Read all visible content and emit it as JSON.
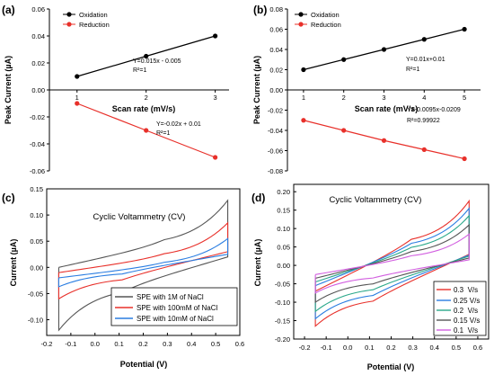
{
  "chart_data": [
    {
      "panel": "(a)",
      "type": "line",
      "xlabel": "Scan rate (mV/s)",
      "ylabel": "Peak Current (µA)",
      "xlim": [
        0.6,
        3.2
      ],
      "ylim": [
        -0.06,
        0.06
      ],
      "xticks": [
        "1",
        "2",
        "3"
      ],
      "yticks": [
        "-0.06",
        "-0.04",
        "-0.02",
        "0.00",
        "0.02",
        "0.04",
        "0.06"
      ],
      "legend": "top-left",
      "series": [
        {
          "name": "Oxidation",
          "color": "#000000",
          "x": [
            1,
            2,
            3
          ],
          "y": [
            0.01,
            0.025,
            0.04
          ]
        },
        {
          "name": "Reduction",
          "color": "#e8302a",
          "x": [
            1,
            2,
            3
          ],
          "y": [
            -0.01,
            -0.03,
            -0.05
          ]
        }
      ],
      "annotations": [
        {
          "eq": "Y=0.015x - 0.005",
          "r2": "R²=1"
        },
        {
          "eq": "Y=-0.02x + 0.01",
          "r2": "R²=1"
        }
      ]
    },
    {
      "panel": "(b)",
      "type": "line",
      "xlabel": "Scan rate (mV/s)",
      "ylabel": "Peak Current (µA)",
      "xlim": [
        0.6,
        5.4
      ],
      "ylim": [
        -0.08,
        0.08
      ],
      "xticks": [
        "1",
        "2",
        "3",
        "4",
        "5"
      ],
      "yticks": [
        "-0.08",
        "-0.06",
        "-0.04",
        "-0.02",
        "0.00",
        "0.02",
        "0.04",
        "0.06",
        "0.08"
      ],
      "legend": "top-left",
      "series": [
        {
          "name": "Oxidation",
          "color": "#000000",
          "x": [
            1,
            2,
            3,
            4,
            5
          ],
          "y": [
            0.02,
            0.03,
            0.04,
            0.05,
            0.06
          ]
        },
        {
          "name": "Reduction",
          "color": "#e8302a",
          "x": [
            1,
            2,
            3,
            4,
            5
          ],
          "y": [
            -0.03,
            -0.04,
            -0.05,
            -0.059,
            -0.068
          ]
        }
      ],
      "annotations": [
        {
          "eq": "Y=0.01x+0.01",
          "r2": "R²=1"
        },
        {
          "eq": "Y=-0.0095x-0.0209",
          "r2": "R²=0.99922"
        }
      ]
    },
    {
      "panel": "(c)",
      "type": "line",
      "title": "Cyclic Voltammetry (CV)",
      "xlabel": "Potential (V)",
      "ylabel": "Current (µA)",
      "xlim": [
        -0.2,
        0.6
      ],
      "ylim": [
        -0.13,
        0.15
      ],
      "xticks": [
        "-0.2",
        "-0.1",
        "0.0",
        "0.1",
        "0.2",
        "0.3",
        "0.4",
        "0.5",
        "0.6"
      ],
      "yticks": [
        "-0.10",
        "-0.05",
        "0.00",
        "0.05",
        "0.10",
        "0.15"
      ],
      "legend": "bottom-right",
      "series": [
        {
          "name": "SPE with 1M of NaCl",
          "color": "#555555",
          "vmin": -0.15,
          "vmax": 0.55,
          "i_upper_start": 0.0,
          "i_upper_mid": 0.045,
          "i_upper_end": 0.128,
          "i_lower_end": 0.02,
          "i_lower_mid": -0.04,
          "i_lower_start": -0.12
        },
        {
          "name": "SPE with 100mM of NaCl",
          "color": "#e8302a",
          "vmin": -0.15,
          "vmax": 0.55,
          "i_upper_start": -0.01,
          "i_upper_mid": 0.02,
          "i_upper_end": 0.085,
          "i_lower_end": 0.03,
          "i_lower_mid": -0.02,
          "i_lower_start": -0.06
        },
        {
          "name": "SPE with 10mM of NaCl",
          "color": "#2a7de1",
          "vmin": -0.15,
          "vmax": 0.55,
          "i_upper_start": -0.02,
          "i_upper_mid": 0.005,
          "i_upper_end": 0.055,
          "i_lower_end": 0.025,
          "i_lower_mid": -0.01,
          "i_lower_start": -0.037
        }
      ]
    },
    {
      "panel": "(d)",
      "type": "line",
      "title": "Cyclic Voltammetry (CV)",
      "xlabel": "Potential (V)",
      "ylabel": "Current (µA)",
      "xlim": [
        -0.25,
        0.65
      ],
      "ylim": [
        -0.2,
        0.22
      ],
      "xticks": [
        "-0.2",
        "-0.1",
        "0.0",
        "0.1",
        "0.2",
        "0.3",
        "0.4",
        "0.5",
        "0.6"
      ],
      "yticks": [
        "-0.20",
        "-0.15",
        "-0.10",
        "-0.05",
        "0.00",
        "0.05",
        "0.10",
        "0.15",
        "0.20"
      ],
      "legend": "bottom-right",
      "series": [
        {
          "name": "0.3  V/s",
          "color": "#e8302a",
          "vmin": -0.15,
          "vmax": 0.56,
          "i_upper_start": -0.07,
          "i_upper_mid": 0.06,
          "i_upper_end": 0.175,
          "i_lower_end": 0.03,
          "i_lower_mid": -0.09,
          "i_lower_start": -0.165
        },
        {
          "name": "0.25 V/s",
          "color": "#2a7de1",
          "vmin": -0.15,
          "vmax": 0.56,
          "i_upper_start": -0.055,
          "i_upper_mid": 0.05,
          "i_upper_end": 0.155,
          "i_lower_end": 0.028,
          "i_lower_mid": -0.075,
          "i_lower_start": -0.145
        },
        {
          "name": "0.2  V/s",
          "color": "#2aa88a",
          "vmin": -0.15,
          "vmax": 0.56,
          "i_upper_start": -0.045,
          "i_upper_mid": 0.04,
          "i_upper_end": 0.135,
          "i_lower_end": 0.025,
          "i_lower_mid": -0.06,
          "i_lower_start": -0.125
        },
        {
          "name": "0.15 V/s",
          "color": "#555555",
          "vmin": -0.15,
          "vmax": 0.56,
          "i_upper_start": -0.035,
          "i_upper_mid": 0.03,
          "i_upper_end": 0.11,
          "i_lower_end": 0.02,
          "i_lower_mid": -0.045,
          "i_lower_start": -0.1
        },
        {
          "name": "0.1  V/s",
          "color": "#d25fe0",
          "vmin": -0.15,
          "vmax": 0.56,
          "i_upper_start": -0.025,
          "i_upper_mid": 0.02,
          "i_upper_end": 0.085,
          "i_lower_end": 0.015,
          "i_lower_mid": -0.03,
          "i_lower_start": -0.075
        }
      ]
    }
  ]
}
